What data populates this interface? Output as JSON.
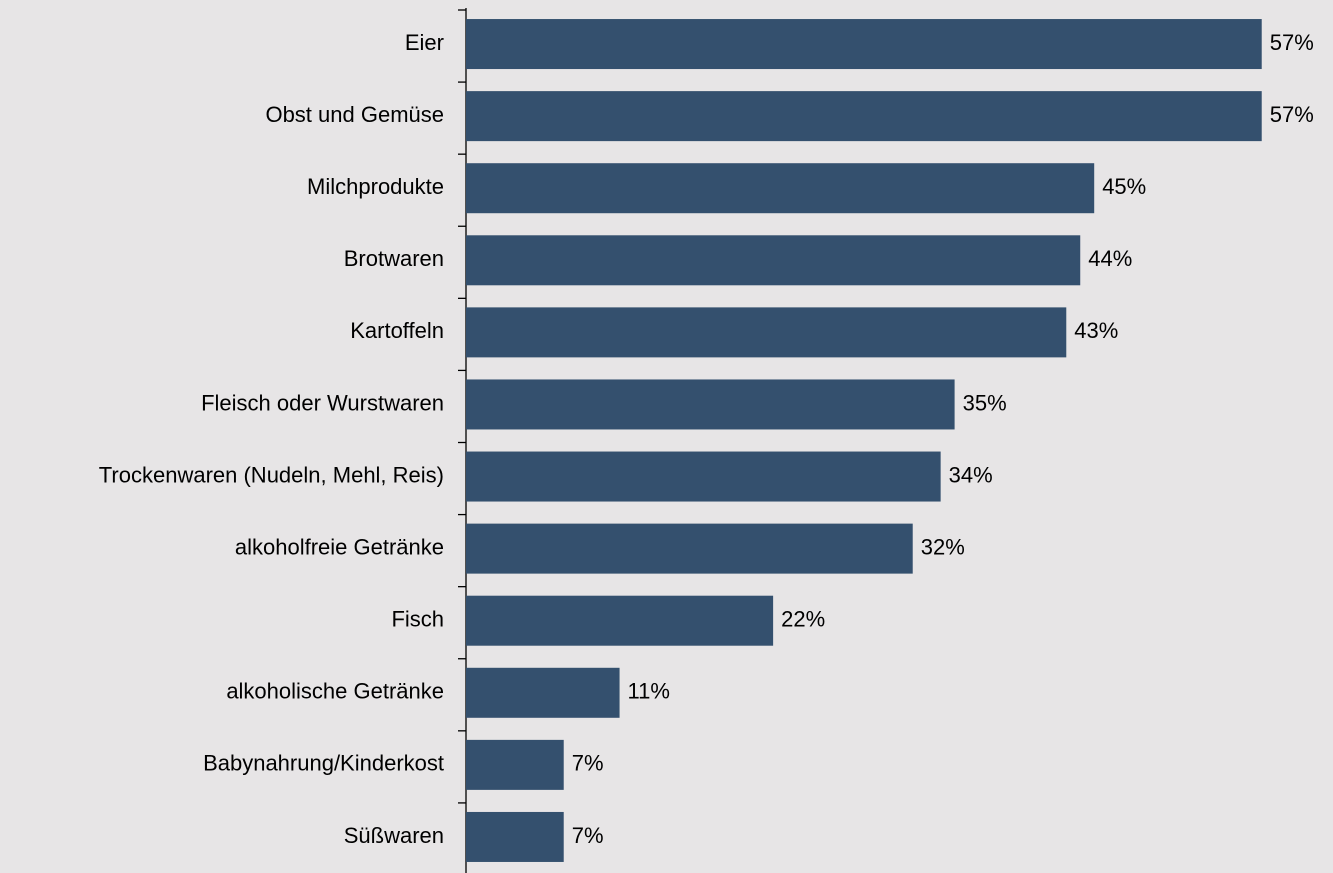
{
  "chart_data": {
    "type": "bar",
    "orientation": "horizontal",
    "categories": [
      "Eier",
      "Obst und Gemüse",
      "Milchprodukte",
      "Brotwaren",
      "Kartoffeln",
      "Fleisch oder Wurstwaren",
      "Trockenwaren (Nudeln, Mehl, Reis)",
      "alkoholfreie Getränke",
      "Fisch",
      "alkoholische Getränke",
      "Babynahrung/Kinderkost",
      "Süßwaren"
    ],
    "values": [
      57,
      57,
      45,
      44,
      43,
      35,
      34,
      32,
      22,
      11,
      7,
      7
    ],
    "value_labels": [
      "57%",
      "57%",
      "45%",
      "44%",
      "43%",
      "35%",
      "34%",
      "32%",
      "22%",
      "11%",
      "7%",
      "7%"
    ],
    "color": "#34506e"
  }
}
